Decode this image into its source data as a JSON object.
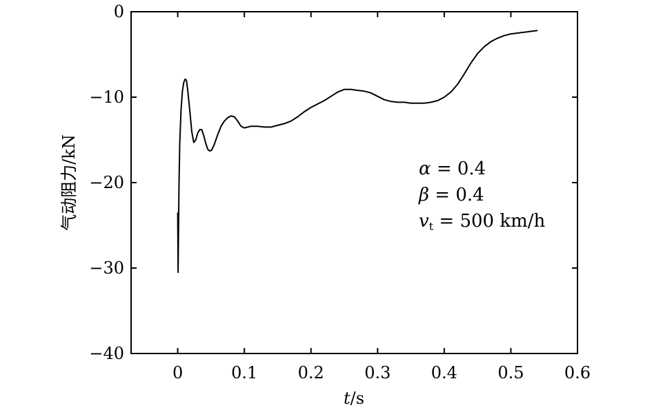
{
  "chart_data": {
    "type": "line",
    "xlabel_var": "t",
    "xlabel_unit": "/s",
    "ylabel": "气动阻力/kN",
    "xlim": [
      -0.07,
      0.6
    ],
    "ylim": [
      -40,
      0
    ],
    "xticks": [
      0,
      0.1,
      0.2,
      0.3,
      0.4,
      0.5,
      0.6
    ],
    "xtick_labels": [
      "0",
      "0.1",
      "0.2",
      "0.3",
      "0.4",
      "0.5",
      "0.6"
    ],
    "yticks": [
      0,
      -10,
      -20,
      -30,
      -40
    ],
    "ytick_labels": [
      "0",
      "−10",
      "−20",
      "−30",
      "−40"
    ],
    "grid": false,
    "annotations": {
      "alpha_sym": "α",
      "alpha_val": " = 0.4",
      "beta_sym": "β",
      "beta_val": " = 0.4",
      "v_sym": "v",
      "v_sub": "t",
      "v_val": " = 500 km/h"
    },
    "series": [
      {
        "x": [
          0.0,
          0.0005,
          0.001,
          0.002,
          0.003,
          0.005,
          0.007,
          0.009,
          0.011,
          0.013,
          0.015,
          0.018,
          0.021,
          0.024,
          0.027,
          0.03,
          0.033,
          0.036,
          0.039,
          0.042,
          0.045,
          0.048,
          0.051,
          0.055,
          0.06,
          0.065,
          0.07,
          0.075,
          0.08,
          0.085,
          0.09,
          0.095,
          0.1,
          0.11,
          0.12,
          0.13,
          0.14,
          0.15,
          0.16,
          0.17,
          0.18,
          0.19,
          0.2,
          0.21,
          0.22,
          0.23,
          0.24,
          0.25,
          0.26,
          0.27,
          0.28,
          0.29,
          0.3,
          0.31,
          0.32,
          0.33,
          0.34,
          0.35,
          0.36,
          0.37,
          0.38,
          0.39,
          0.4,
          0.41,
          0.42,
          0.43,
          0.44,
          0.45,
          0.46,
          0.47,
          0.48,
          0.49,
          0.5,
          0.51,
          0.52,
          0.53,
          0.54
        ],
        "y": [
          -23.5,
          -30.5,
          -26.5,
          -20.0,
          -15.5,
          -11.5,
          -9.3,
          -8.3,
          -7.9,
          -8.0,
          -9.2,
          -11.5,
          -14.0,
          -15.3,
          -15.0,
          -14.2,
          -13.8,
          -13.8,
          -14.5,
          -15.4,
          -16.1,
          -16.3,
          -16.2,
          -15.5,
          -14.4,
          -13.4,
          -12.8,
          -12.4,
          -12.2,
          -12.3,
          -12.8,
          -13.4,
          -13.6,
          -13.4,
          -13.4,
          -13.5,
          -13.5,
          -13.3,
          -13.1,
          -12.8,
          -12.3,
          -11.7,
          -11.2,
          -10.8,
          -10.4,
          -9.9,
          -9.4,
          -9.1,
          -9.1,
          -9.2,
          -9.3,
          -9.5,
          -9.9,
          -10.3,
          -10.5,
          -10.6,
          -10.6,
          -10.7,
          -10.7,
          -10.7,
          -10.6,
          -10.4,
          -10.0,
          -9.4,
          -8.5,
          -7.3,
          -6.0,
          -4.9,
          -4.1,
          -3.5,
          -3.1,
          -2.8,
          -2.6,
          -2.5,
          -2.4,
          -2.3,
          -2.2
        ]
      }
    ]
  }
}
